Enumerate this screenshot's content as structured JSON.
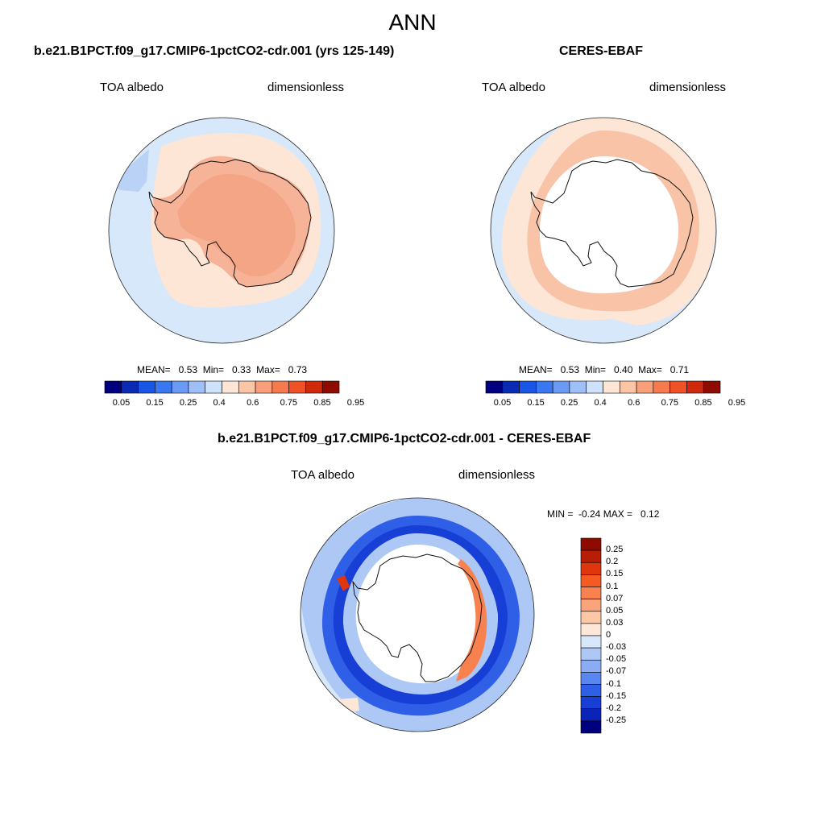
{
  "season": "ANN",
  "colors": {
    "cb_horizontal": [
      "#00007f",
      "#0a2bb3",
      "#1a56e6",
      "#3a78f2",
      "#6a9af6",
      "#9ebff8",
      "#cfe2fb",
      "#fde6d6",
      "#fcc5a6",
      "#f9a07a",
      "#f57a4e",
      "#ee5226",
      "#cf2a0c",
      "#8e0b00"
    ],
    "cb_vertical": [
      "#8e0b00",
      "#b81d05",
      "#e0360d",
      "#f55a23",
      "#f7814f",
      "#f9a47b",
      "#fbc7a7",
      "#fde7d9",
      "#d8e8fb",
      "#aec8f5",
      "#8aacf2",
      "#5a86ef",
      "#2f5fe6",
      "#173fd6",
      "#0a24b8",
      "#00007f"
    ],
    "ocean_light": "#d6e8fa",
    "land_salmon": "#f4a585",
    "peach": "#fbd3bc",
    "pale_peach": "#fde6d6"
  },
  "panel_left": {
    "title": "b.e21.B1PCT.f09_g17.CMIP6-1pctCO2-cdr.001 (yrs 125-149)",
    "left_label": "TOA albedo",
    "right_label": "dimensionless",
    "stats": "MEAN=   0.53  Min=   0.33  Max=   0.73"
  },
  "panel_right": {
    "title": "CERES-EBAF",
    "left_label": "TOA albedo",
    "right_label": "dimensionless",
    "stats": "MEAN=   0.53  Min=   0.40  Max=   0.71"
  },
  "panel_diff": {
    "title": "b.e21.B1PCT.f09_g17.CMIP6-1pctCO2-cdr.001 - CERES-EBAF",
    "left_label": "TOA albedo",
    "right_label": "dimensionless",
    "stats": "MIN =  -0.24 MAX =   0.12"
  },
  "colorbar_abs_ticks": [
    "0.05",
    "0.15",
    "0.25",
    "0.4",
    "0.6",
    "0.75",
    "0.85",
    "0.95"
  ],
  "colorbar_diff_ticks": [
    "0.25",
    "0.2",
    "0.15",
    "0.1",
    "0.07",
    "0.05",
    "0.03",
    "0",
    "-0.03",
    "-0.05",
    "-0.07",
    "-0.1",
    "-0.15",
    "-0.2",
    "-0.25"
  ]
}
